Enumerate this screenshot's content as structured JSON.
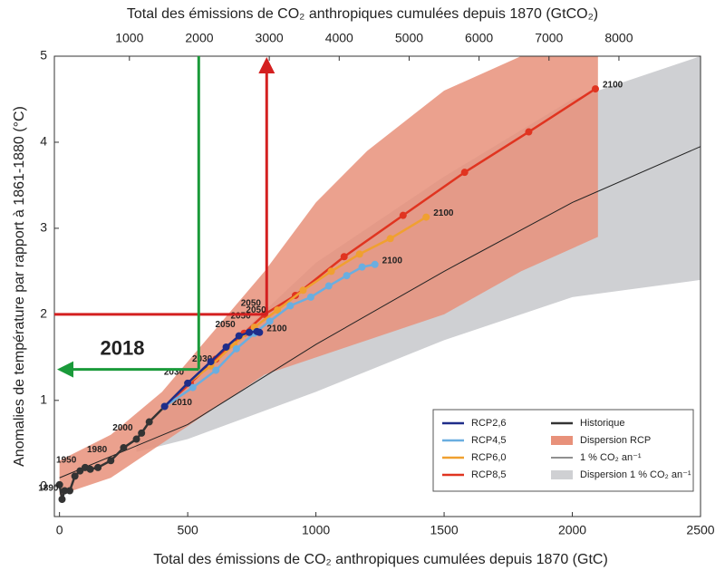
{
  "chart_data": {
    "type": "line",
    "x_label": "Total des émissions de CO₂ anthropiques cumulées depuis 1870 (GtC)",
    "x2_label": "Total des émissions de CO₂ anthropiques cumulées depuis 1870 (GtCO₂)",
    "y_label": "Anomalies de température par rapport à 1861-1880 (°C)",
    "xlim": [
      -20,
      2500
    ],
    "xticks": [
      0,
      500,
      1000,
      1500,
      2000,
      2500
    ],
    "x2lim": [
      -73,
      9167
    ],
    "x2ticks": [
      1000,
      2000,
      3000,
      4000,
      5000,
      6000,
      7000,
      8000
    ],
    "ylim": [
      -0.35,
      5
    ],
    "yticks": [
      0,
      1,
      2,
      3,
      4,
      5
    ],
    "legend": "lower right",
    "series": [
      {
        "name": "RCP2,6",
        "color": "#1f2d8a",
        "markers": true,
        "x": [
          410,
          500,
          590,
          650,
          700,
          740,
          770,
          780
        ],
        "values": [
          0.93,
          1.2,
          1.45,
          1.62,
          1.75,
          1.79,
          1.8,
          1.79
        ],
        "point_labels": [
          null,
          "2030",
          null,
          null,
          "2050",
          null,
          null,
          "2100"
        ]
      },
      {
        "name": "RCP4,5",
        "color": "#6aaee0",
        "markers": true,
        "x": [
          410,
          520,
          610,
          690,
          760,
          820,
          900,
          980,
          1050,
          1120,
          1180,
          1230
        ],
        "values": [
          0.93,
          1.15,
          1.35,
          1.6,
          1.78,
          1.92,
          2.1,
          2.2,
          2.33,
          2.45,
          2.55,
          2.58
        ],
        "point_labels": [
          null,
          null,
          "2030",
          null,
          null,
          "2050",
          null,
          null,
          null,
          null,
          null,
          "2100"
        ]
      },
      {
        "name": "RCP6,0",
        "color": "#f0a030",
        "markers": true,
        "x": [
          410,
          500,
          590,
          680,
          760,
          850,
          950,
          1060,
          1170,
          1290,
          1430
        ],
        "values": [
          0.93,
          1.2,
          1.4,
          1.65,
          1.85,
          2.05,
          2.28,
          2.5,
          2.7,
          2.88,
          3.13
        ],
        "point_labels": [
          null,
          null,
          null,
          null,
          "2050",
          null,
          null,
          null,
          null,
          null,
          "2100"
        ]
      },
      {
        "name": "RCP8,5",
        "color": "#e03420",
        "markers": true,
        "x": [
          410,
          510,
          610,
          720,
          800,
          920,
          1110,
          1340,
          1580,
          1830,
          2090
        ],
        "values": [
          0.93,
          1.2,
          1.48,
          1.78,
          2.0,
          2.22,
          2.67,
          3.15,
          3.65,
          4.12,
          4.62
        ],
        "point_labels": [
          null,
          null,
          null,
          null,
          "2050",
          null,
          null,
          null,
          null,
          null,
          "2100"
        ]
      },
      {
        "name": "Historique",
        "color": "#333333",
        "markers": true,
        "x": [
          0,
          10,
          20,
          40,
          60,
          80,
          100,
          120,
          150,
          200,
          250,
          300,
          320,
          350,
          410
        ],
        "values": [
          0.02,
          -0.15,
          -0.05,
          -0.05,
          0.12,
          0.18,
          0.22,
          0.2,
          0.22,
          0.3,
          0.45,
          0.55,
          0.62,
          0.75,
          0.93
        ],
        "point_labels": [
          null,
          "1890",
          null,
          null,
          null,
          "1950",
          null,
          null,
          null,
          "1980",
          null,
          "2000",
          null,
          null,
          "2010"
        ]
      },
      {
        "name": "1 % CO₂ an⁻¹",
        "color": "#222222",
        "markers": false,
        "x": [
          0,
          500,
          1000,
          1500,
          2000,
          2500
        ],
        "values": [
          0.1,
          0.72,
          1.65,
          2.5,
          3.3,
          3.95
        ]
      }
    ],
    "bands": [
      {
        "name": "Dispersion RCP",
        "color": "#e8917a",
        "x": [
          0,
          200,
          400,
          600,
          800,
          1000,
          1200,
          1500,
          1800,
          2100
        ],
        "lower": [
          -0.1,
          0.1,
          0.5,
          0.9,
          1.3,
          1.5,
          1.7,
          2.0,
          2.5,
          2.9
        ],
        "upper": [
          0.3,
          0.6,
          1.1,
          1.8,
          2.5,
          3.3,
          3.9,
          4.6,
          5.0,
          5.0
        ]
      },
      {
        "name": "Dispersion 1 % CO₂ an⁻¹",
        "color": "#cfd0d3",
        "x": [
          300,
          500,
          1000,
          1500,
          2000,
          2500
        ],
        "lower": [
          0.4,
          0.55,
          1.1,
          1.7,
          2.2,
          2.4
        ],
        "upper": [
          0.6,
          1.2,
          2.6,
          3.6,
          4.5,
          5.0
        ]
      }
    ],
    "guides": [
      {
        "color": "#d42020",
        "x": 808,
        "y": 2,
        "arrow": "up"
      },
      {
        "color": "#1a9a3a",
        "x": 543,
        "y": 1.36,
        "arrow": "left",
        "label": "2018"
      }
    ]
  }
}
